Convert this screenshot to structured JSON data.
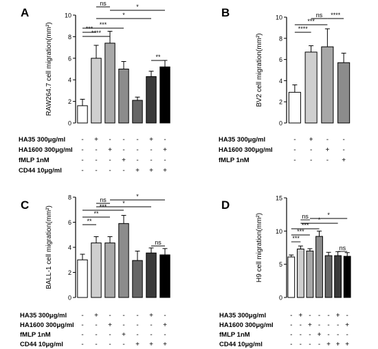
{
  "chart_data": [
    {
      "letter": "A",
      "type": "bar",
      "ylabel": "RAW264.7 cell migration(mm²)",
      "ylim": [
        0,
        10
      ],
      "yticks": [
        0,
        2,
        4,
        6,
        8,
        10
      ],
      "values": [
        1.6,
        6.0,
        7.4,
        5.0,
        2.1,
        4.3,
        5.2
      ],
      "errors": [
        0.6,
        1.2,
        1.1,
        0.7,
        0.3,
        0.5,
        0.6
      ],
      "colors": [
        "#ffffff",
        "#cfcfcf",
        "#a8a8a8",
        "#8c8c8c",
        "#666666",
        "#3a3a3a",
        "#000000"
      ],
      "conditions": [
        {
          "label": "HA35 300μg/ml",
          "marks": [
            "-",
            "+",
            "-",
            "-",
            "-",
            "+",
            "-"
          ]
        },
        {
          "label": "HA1600 300μg/ml",
          "marks": [
            "-",
            "-",
            "+",
            "-",
            "-",
            "-",
            "+"
          ]
        },
        {
          "label": "fMLP 1nM",
          "marks": [
            "-",
            "-",
            "-",
            "+",
            "-",
            "-",
            "-"
          ]
        },
        {
          "label": "CD44 10μg/ml",
          "marks": [
            "-",
            "-",
            "-",
            "-",
            "+",
            "+",
            "+"
          ]
        }
      ],
      "comparisons": [
        {
          "from": 0,
          "to": 1,
          "label": "***"
        },
        {
          "from": 0,
          "to": 2,
          "label": "****"
        },
        {
          "from": 0,
          "to": 3,
          "label": "***"
        },
        {
          "from": 1,
          "to": 5,
          "label": "*"
        },
        {
          "from": 2,
          "to": 6,
          "label": "*"
        },
        {
          "from": 1,
          "to": 2,
          "label": "ns"
        },
        {
          "from": 5,
          "to": 6,
          "label": "**"
        }
      ]
    },
    {
      "letter": "B",
      "type": "bar",
      "ylabel": "BV2 cell migration(mm²)",
      "ylim": [
        0,
        10
      ],
      "yticks": [
        0,
        2,
        4,
        6,
        8,
        10
      ],
      "values": [
        2.9,
        6.7,
        7.2,
        5.7
      ],
      "errors": [
        0.7,
        0.6,
        1.7,
        0.9
      ],
      "colors": [
        "#ffffff",
        "#cfcfcf",
        "#a8a8a8",
        "#8c8c8c"
      ],
      "conditions": [
        {
          "label": "HA35 300μg/ml",
          "marks": [
            "-",
            "+",
            "-",
            "-"
          ]
        },
        {
          "label": "HA1600 300μg/ml",
          "marks": [
            "-",
            "-",
            "+",
            "-"
          ]
        },
        {
          "label": "fMLP 1nM",
          "marks": [
            "-",
            "-",
            "-",
            "+"
          ]
        }
      ],
      "comparisons": [
        {
          "from": 0,
          "to": 1,
          "label": "****"
        },
        {
          "from": 0,
          "to": 2,
          "label": "***"
        },
        {
          "from": 1,
          "to": 2,
          "label": "ns"
        },
        {
          "from": 2,
          "to": 3,
          "label": "****"
        }
      ]
    },
    {
      "letter": "C",
      "type": "bar",
      "ylabel": "BALL-1 cell migration(mm²)",
      "ylim": [
        0,
        8
      ],
      "yticks": [
        0,
        2,
        4,
        6,
        8
      ],
      "values": [
        3.0,
        4.35,
        4.35,
        5.9,
        2.95,
        3.55,
        3.4
      ],
      "errors": [
        0.45,
        0.5,
        0.5,
        0.65,
        0.75,
        0.4,
        0.5
      ],
      "colors": [
        "#ffffff",
        "#cfcfcf",
        "#a8a8a8",
        "#8c8c8c",
        "#666666",
        "#3a3a3a",
        "#000000"
      ],
      "conditions": [
        {
          "label": "HA35 300μg/ml",
          "marks": [
            "-",
            "+",
            "-",
            "-",
            "-",
            "+",
            "-"
          ]
        },
        {
          "label": "HA1600 300μg/ml",
          "marks": [
            "-",
            "-",
            "+",
            "-",
            "-",
            "-",
            "+"
          ]
        },
        {
          "label": "fMLP 1nM",
          "marks": [
            "-",
            "-",
            "-",
            "+",
            "-",
            "-",
            "-"
          ]
        },
        {
          "label": "CD44 10μg/ml",
          "marks": [
            "-",
            "-",
            "-",
            "-",
            "+",
            "+",
            "+"
          ]
        }
      ],
      "comparisons": [
        {
          "from": 0,
          "to": 1,
          "label": "**"
        },
        {
          "from": 0,
          "to": 2,
          "label": "**"
        },
        {
          "from": 0,
          "to": 3,
          "label": "***"
        },
        {
          "from": 1,
          "to": 5,
          "label": "*"
        },
        {
          "from": 2,
          "to": 6,
          "label": "*"
        },
        {
          "from": 1,
          "to": 2,
          "label": "ns"
        },
        {
          "from": 5,
          "to": 6,
          "label": "ns"
        }
      ]
    },
    {
      "letter": "D",
      "type": "bar",
      "ylabel": "H9 cell migration(mm²)",
      "ylim": [
        0,
        15
      ],
      "yticks": [
        0,
        5,
        10,
        15
      ],
      "values": [
        6.1,
        7.3,
        7.0,
        9.2,
        6.3,
        6.3,
        6.2
      ],
      "errors": [
        0.3,
        0.45,
        0.35,
        0.8,
        0.5,
        0.6,
        0.55
      ],
      "colors": [
        "#ffffff",
        "#cfcfcf",
        "#a8a8a8",
        "#8c8c8c",
        "#666666",
        "#3a3a3a",
        "#000000"
      ],
      "conditions": [
        {
          "label": "HA35 300μg/ml",
          "marks": [
            "-",
            "+",
            "-",
            "-",
            "-",
            "+",
            "-"
          ]
        },
        {
          "label": "HA1600 300μg/ml",
          "marks": [
            "-",
            "-",
            "+",
            "-",
            "-",
            "-",
            "+"
          ]
        },
        {
          "label": "fMLP 1nM",
          "marks": [
            "-",
            "-",
            "-",
            "+",
            "-",
            "-",
            "-"
          ]
        },
        {
          "label": "CD44 10μg/ml",
          "marks": [
            "-",
            "-",
            "-",
            "-",
            "+",
            "+",
            "+"
          ]
        }
      ],
      "comparisons": [
        {
          "from": 0,
          "to": 1,
          "label": "***"
        },
        {
          "from": 0,
          "to": 2,
          "label": "***"
        },
        {
          "from": 0,
          "to": 3,
          "label": "***"
        },
        {
          "from": 1,
          "to": 5,
          "label": "*"
        },
        {
          "from": 2,
          "to": 6,
          "label": "*"
        },
        {
          "from": 1,
          "to": 2,
          "label": "ns"
        },
        {
          "from": 5,
          "to": 6,
          "label": "ns"
        }
      ]
    }
  ]
}
